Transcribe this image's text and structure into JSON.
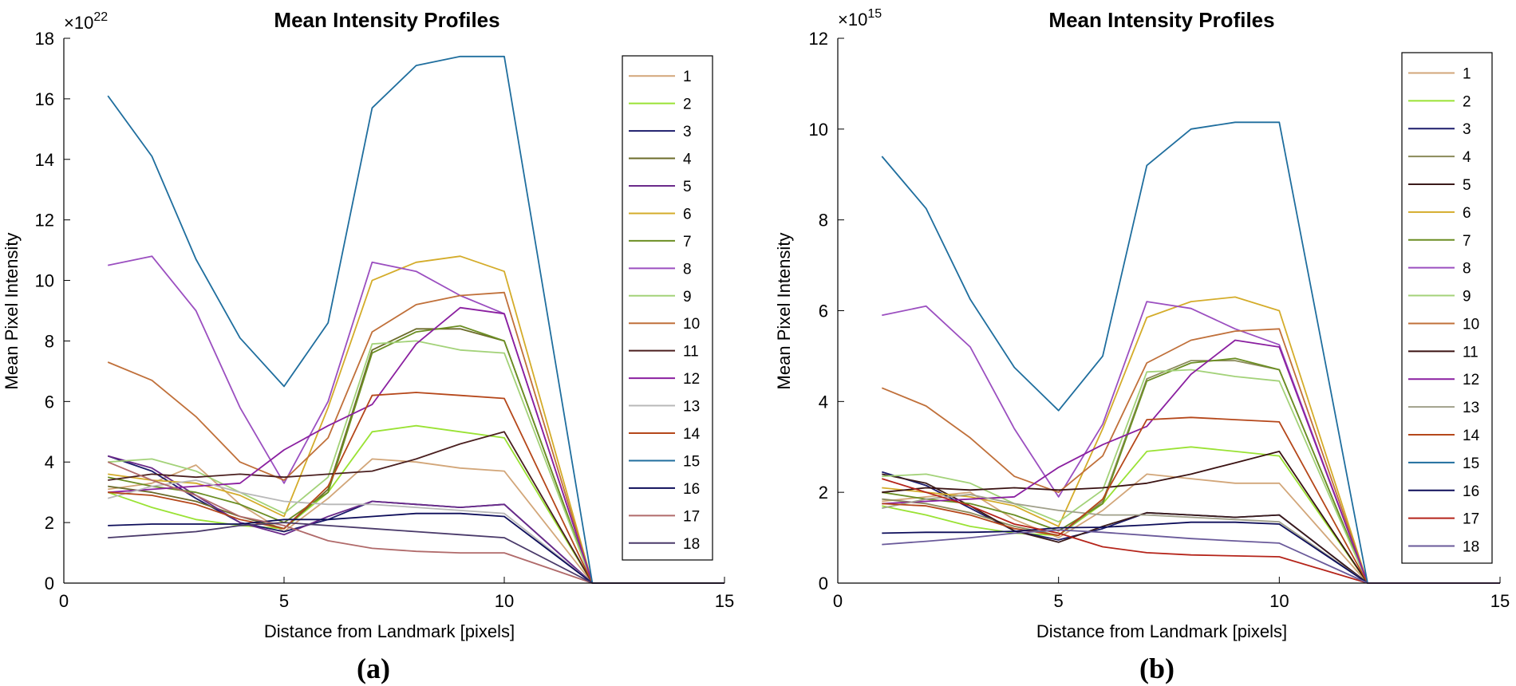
{
  "figure": {
    "captions": [
      "(a)",
      "(b)"
    ]
  },
  "chart_data": [
    {
      "type": "line",
      "title": "Mean Intensity Profiles",
      "xlabel": "Distance from Landmark [pixels]",
      "ylabel": "Mean Pixel Intensity",
      "multiplier_base": "×10",
      "multiplier_exp": "22",
      "xlim": [
        0,
        15
      ],
      "ylim": [
        0,
        18
      ],
      "xticks": [
        0,
        5,
        10,
        15
      ],
      "yticks": [
        0,
        2,
        4,
        6,
        8,
        10,
        12,
        14,
        16,
        18
      ],
      "grid": false,
      "legend_position": "top-right",
      "x": [
        1,
        2,
        3,
        4,
        5,
        6,
        7,
        8,
        9,
        10,
        12,
        15
      ],
      "series": [
        {
          "name": "1",
          "color": "#d2a679",
          "values": [
            3.1,
            3.3,
            3.9,
            2.6,
            1.7,
            2.8,
            4.1,
            4.0,
            3.8,
            3.7,
            0,
            0
          ]
        },
        {
          "name": "2",
          "color": "#9ae234",
          "values": [
            3.0,
            2.5,
            2.1,
            1.9,
            1.8,
            3.0,
            5.0,
            5.2,
            5.0,
            4.8,
            0,
            0
          ]
        },
        {
          "name": "3",
          "color": "#1c1c6b",
          "values": [
            4.2,
            3.7,
            2.8,
            2.0,
            1.7,
            2.1,
            2.7,
            2.6,
            2.5,
            2.6,
            0,
            0
          ]
        },
        {
          "name": "4",
          "color": "#6b6b2a",
          "values": [
            3.2,
            3.0,
            2.7,
            2.2,
            1.8,
            3.1,
            7.7,
            8.4,
            8.4,
            8.0,
            0,
            0
          ]
        },
        {
          "name": "5",
          "color": "#6a2a8a",
          "values": [
            4.2,
            3.8,
            2.9,
            2.0,
            1.6,
            2.2,
            2.7,
            2.6,
            2.5,
            2.6,
            0,
            0
          ]
        },
        {
          "name": "6",
          "color": "#d4ac2a",
          "values": [
            3.6,
            3.4,
            3.3,
            2.9,
            2.2,
            5.8,
            10.0,
            10.6,
            10.8,
            10.3,
            0,
            0
          ]
        },
        {
          "name": "7",
          "color": "#6b8e23",
          "values": [
            3.5,
            3.2,
            3.0,
            2.6,
            2.0,
            3.0,
            7.6,
            8.3,
            8.5,
            8.0,
            0,
            0
          ]
        },
        {
          "name": "8",
          "color": "#9b4fc0",
          "values": [
            10.5,
            10.8,
            9.0,
            5.8,
            3.3,
            6.0,
            10.6,
            10.3,
            9.5,
            8.9,
            0,
            0
          ]
        },
        {
          "name": "9",
          "color": "#a3d279",
          "values": [
            4.0,
            4.1,
            3.7,
            3.0,
            2.3,
            3.5,
            7.9,
            8.0,
            7.7,
            7.6,
            0,
            0
          ]
        },
        {
          "name": "10",
          "color": "#c0703a",
          "values": [
            7.3,
            6.7,
            5.5,
            4.0,
            3.4,
            4.8,
            8.3,
            9.2,
            9.5,
            9.6,
            0,
            0
          ]
        },
        {
          "name": "11",
          "color": "#4a1f1f",
          "values": [
            3.4,
            3.6,
            3.5,
            3.6,
            3.5,
            3.6,
            3.7,
            4.1,
            4.6,
            5.0,
            0,
            0
          ]
        },
        {
          "name": "12",
          "color": "#8a1fa0",
          "values": [
            3.0,
            3.1,
            3.2,
            3.3,
            4.4,
            5.2,
            5.9,
            7.9,
            9.1,
            8.9,
            0,
            0
          ]
        },
        {
          "name": "13",
          "color": "#b8b8b8",
          "values": [
            2.8,
            3.2,
            3.4,
            3.0,
            2.7,
            2.6,
            2.6,
            2.5,
            2.4,
            2.3,
            0,
            0
          ]
        },
        {
          "name": "14",
          "color": "#b5471a",
          "values": [
            3.0,
            2.9,
            2.6,
            2.1,
            1.8,
            3.2,
            6.2,
            6.3,
            6.2,
            6.1,
            0,
            0
          ]
        },
        {
          "name": "15",
          "color": "#1f6e9e",
          "values": [
            16.1,
            14.1,
            10.7,
            8.1,
            6.5,
            8.6,
            15.7,
            17.1,
            17.4,
            17.4,
            0,
            0
          ]
        },
        {
          "name": "16",
          "color": "#0d0d5a",
          "values": [
            1.9,
            1.95,
            1.95,
            1.95,
            2.1,
            2.1,
            2.2,
            2.3,
            2.3,
            2.2,
            0,
            0
          ]
        },
        {
          "name": "17",
          "color": "#b06a6a",
          "values": [
            4.0,
            3.4,
            2.9,
            2.2,
            1.9,
            1.4,
            1.15,
            1.05,
            1.0,
            1.0,
            0,
            0
          ]
        },
        {
          "name": "18",
          "color": "#4a3a6a",
          "values": [
            1.5,
            1.6,
            1.7,
            1.9,
            2.0,
            1.9,
            1.8,
            1.7,
            1.6,
            1.5,
            0,
            0
          ]
        }
      ]
    },
    {
      "type": "line",
      "title": "Mean Intensity Profiles",
      "xlabel": "Distance from Landmark [pixels]",
      "ylabel": "Mean Pixel Intensity",
      "multiplier_base": "×10",
      "multiplier_exp": "15",
      "xlim": [
        0,
        15
      ],
      "ylim": [
        0,
        12
      ],
      "xticks": [
        0,
        5,
        10,
        15
      ],
      "yticks": [
        0,
        2,
        4,
        6,
        8,
        10,
        12
      ],
      "grid": false,
      "legend_position": "top-right",
      "x": [
        1,
        2,
        3,
        4,
        5,
        6,
        7,
        8,
        9,
        10,
        12,
        15
      ],
      "series": [
        {
          "name": "1",
          "color": "#d2a679",
          "values": [
            1.8,
            1.9,
            2.0,
            1.4,
            1.0,
            1.6,
            2.4,
            2.3,
            2.2,
            2.2,
            0,
            0
          ]
        },
        {
          "name": "2",
          "color": "#9ae234",
          "values": [
            1.7,
            1.5,
            1.25,
            1.1,
            1.05,
            1.75,
            2.9,
            3.0,
            2.9,
            2.8,
            0,
            0
          ]
        },
        {
          "name": "3",
          "color": "#1c1c6b",
          "values": [
            2.45,
            2.15,
            1.65,
            1.15,
            0.95,
            1.2,
            1.55,
            1.5,
            1.45,
            1.5,
            0,
            0
          ]
        },
        {
          "name": "4",
          "color": "#8a8a5a",
          "values": [
            1.85,
            1.75,
            1.55,
            1.25,
            1.05,
            1.8,
            4.5,
            4.9,
            4.9,
            4.7,
            0,
            0
          ]
        },
        {
          "name": "5",
          "color": "#3a1a1a",
          "values": [
            2.4,
            2.2,
            1.7,
            1.15,
            0.9,
            1.25,
            1.55,
            1.5,
            1.45,
            1.5,
            0,
            0
          ]
        },
        {
          "name": "6",
          "color": "#d4ac2a",
          "values": [
            2.1,
            2.0,
            1.9,
            1.7,
            1.25,
            3.4,
            5.85,
            6.2,
            6.3,
            6.0,
            0,
            0
          ]
        },
        {
          "name": "7",
          "color": "#6b8e23",
          "values": [
            2.0,
            1.85,
            1.75,
            1.5,
            1.15,
            1.75,
            4.45,
            4.85,
            4.95,
            4.7,
            0,
            0
          ]
        },
        {
          "name": "8",
          "color": "#9b4fc0",
          "values": [
            5.9,
            6.1,
            5.2,
            3.4,
            1.9,
            3.5,
            6.2,
            6.05,
            5.6,
            5.25,
            0,
            0
          ]
        },
        {
          "name": "9",
          "color": "#a3d279",
          "values": [
            2.35,
            2.4,
            2.2,
            1.75,
            1.35,
            2.05,
            4.65,
            4.7,
            4.55,
            4.45,
            0,
            0
          ]
        },
        {
          "name": "10",
          "color": "#c0703a",
          "values": [
            4.3,
            3.9,
            3.2,
            2.35,
            2.0,
            2.8,
            4.85,
            5.35,
            5.55,
            5.6,
            0,
            0
          ]
        },
        {
          "name": "11",
          "color": "#3a1212",
          "values": [
            2.0,
            2.1,
            2.05,
            2.1,
            2.05,
            2.1,
            2.2,
            2.4,
            2.65,
            2.9,
            0,
            0
          ]
        },
        {
          "name": "12",
          "color": "#8a1fa0",
          "values": [
            1.75,
            1.8,
            1.85,
            1.9,
            2.55,
            3.05,
            3.45,
            4.6,
            5.35,
            5.2,
            0,
            0
          ]
        },
        {
          "name": "13",
          "color": "#a0a08a",
          "values": [
            1.65,
            1.85,
            1.95,
            1.75,
            1.6,
            1.5,
            1.5,
            1.45,
            1.4,
            1.35,
            0,
            0
          ]
        },
        {
          "name": "14",
          "color": "#b5471a",
          "values": [
            1.75,
            1.7,
            1.5,
            1.2,
            1.05,
            1.85,
            3.6,
            3.65,
            3.6,
            3.55,
            0,
            0
          ]
        },
        {
          "name": "15",
          "color": "#1f6e9e",
          "values": [
            9.4,
            8.25,
            6.25,
            4.75,
            3.8,
            5.0,
            9.2,
            10.0,
            10.15,
            10.15,
            0,
            0
          ]
        },
        {
          "name": "16",
          "color": "#0d0d5a",
          "values": [
            1.1,
            1.12,
            1.12,
            1.14,
            1.22,
            1.23,
            1.28,
            1.34,
            1.34,
            1.3,
            0,
            0
          ]
        },
        {
          "name": "17",
          "color": "#b5241a",
          "values": [
            2.3,
            2.0,
            1.7,
            1.3,
            1.1,
            0.8,
            0.67,
            0.62,
            0.6,
            0.58,
            0,
            0
          ]
        },
        {
          "name": "18",
          "color": "#6a5a9a",
          "values": [
            0.85,
            0.92,
            1.0,
            1.1,
            1.17,
            1.12,
            1.05,
            0.98,
            0.93,
            0.88,
            0,
            0
          ]
        }
      ]
    }
  ]
}
